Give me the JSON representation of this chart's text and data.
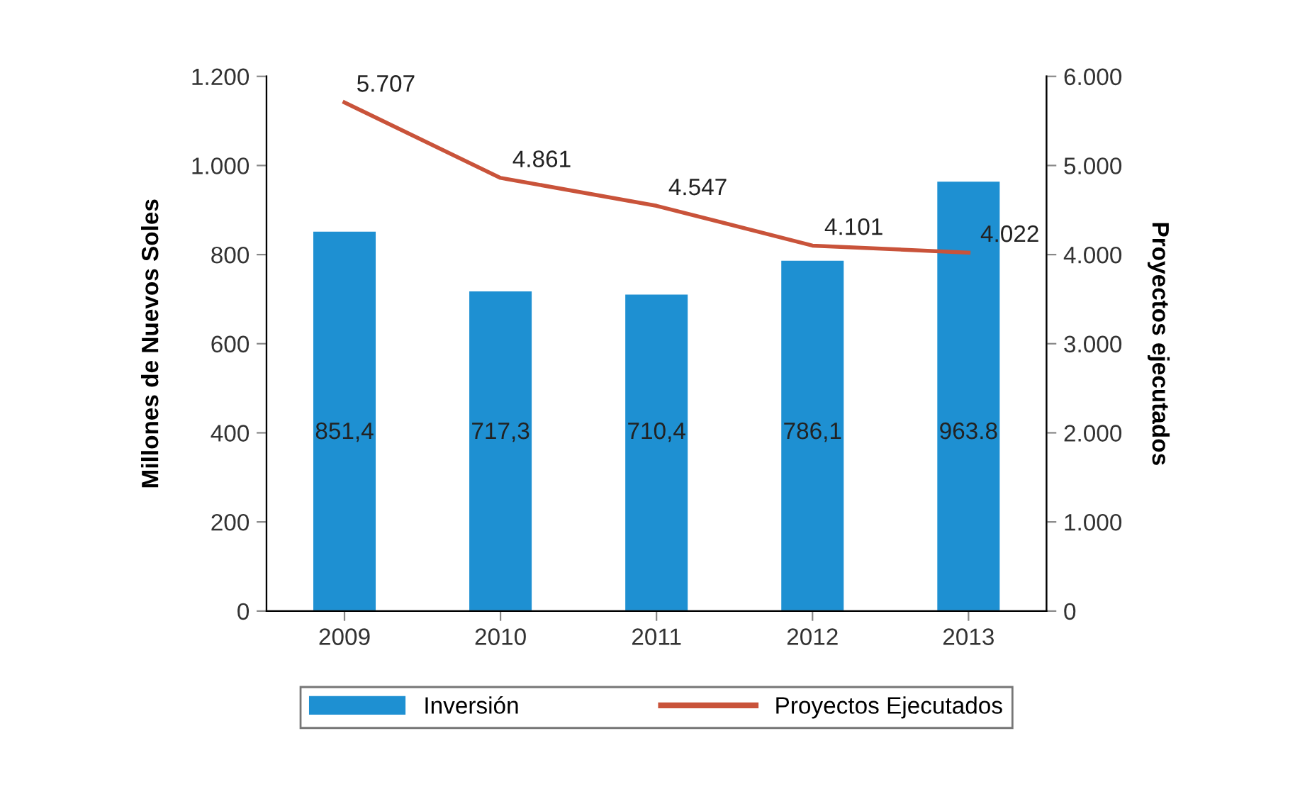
{
  "chart_data": {
    "type": "bar",
    "categories": [
      "2009",
      "2010",
      "2011",
      "2012",
      "2013"
    ],
    "ylabel": "Millones de Nuevos Soles",
    "y2label": "Proyectos ejecutados",
    "ylim": [
      0,
      1200
    ],
    "yticks": [
      0,
      200,
      400,
      600,
      800,
      {
        "value": 1000,
        "label": "1.000"
      },
      {
        "value": 1200,
        "label": "1.200"
      }
    ],
    "y2lim": [
      0,
      6000
    ],
    "y2ticks": [
      0,
      {
        "value": 1000,
        "label": "1.000"
      },
      {
        "value": 2000,
        "label": "2.000"
      },
      {
        "value": 3000,
        "label": "3.000"
      },
      {
        "value": 4000,
        "label": "4.000"
      },
      {
        "value": 5000,
        "label": "5.000"
      },
      {
        "value": 6000,
        "label": "6.000"
      }
    ],
    "series": [
      {
        "name": "Inversión",
        "color": "#1e90d2",
        "values": [
          851.4,
          717.3,
          710.4,
          786.1,
          963.8
        ],
        "value_labels": [
          "851,4",
          "717,3",
          "710,4",
          "786,1",
          "963.8"
        ]
      },
      {
        "name": "Proyectos Ejecutados",
        "type": "line",
        "axis": "y2",
        "color": "#c9533a",
        "values": [
          5707,
          4861,
          4547,
          4101,
          4022
        ],
        "value_labels": [
          "5.707",
          "4.861",
          "4.547",
          "4.101",
          "4.022"
        ]
      }
    ],
    "legend": "bottom",
    "grid": false
  }
}
